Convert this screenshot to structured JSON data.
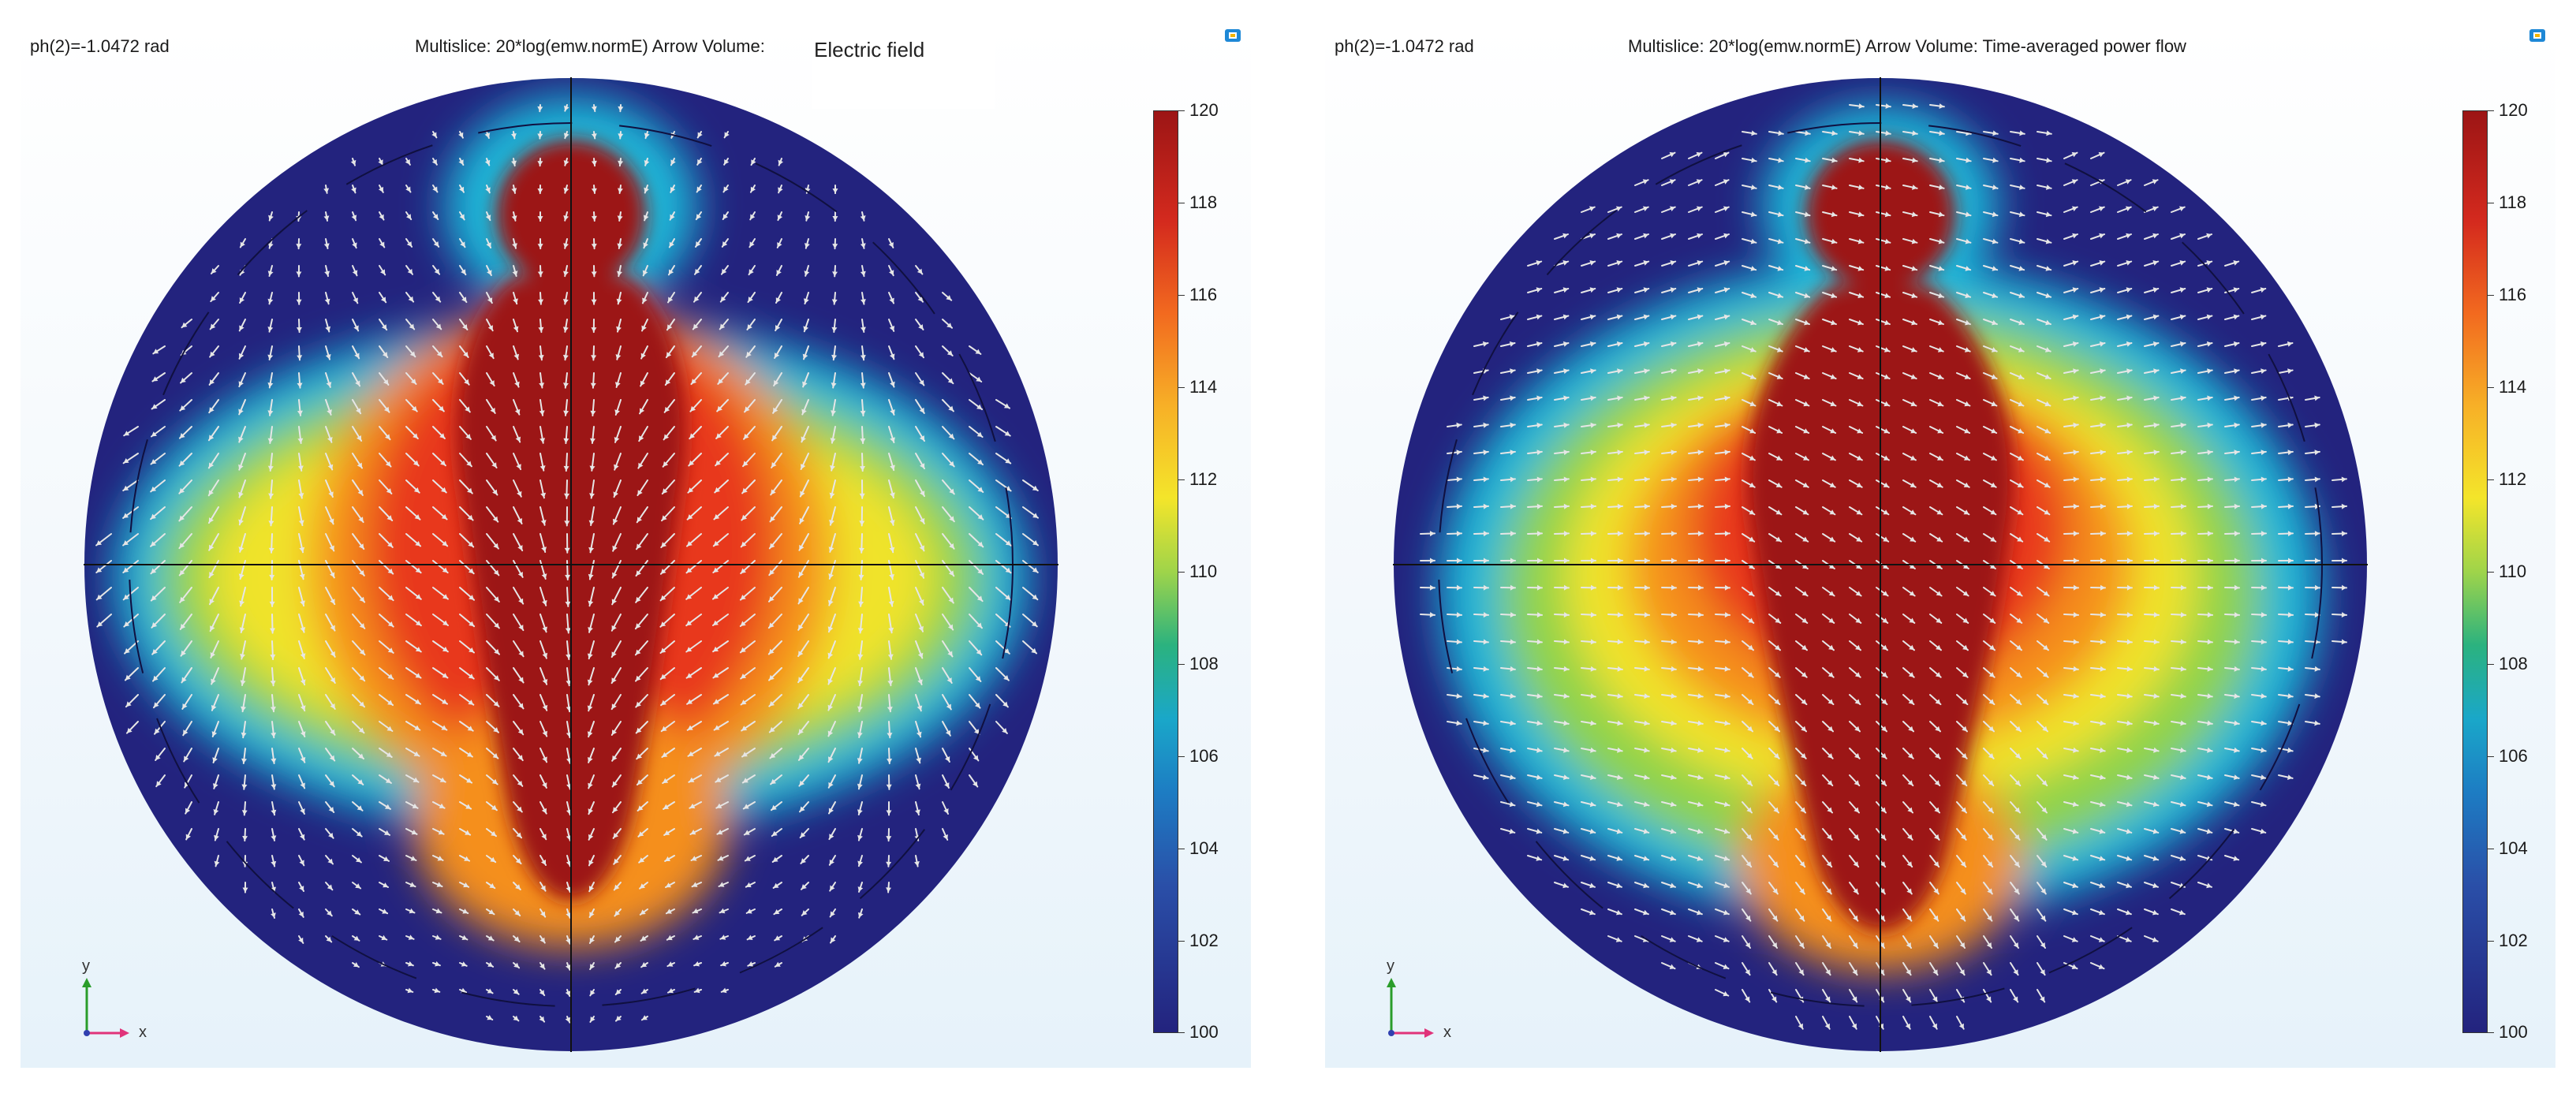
{
  "panels": [
    {
      "phase_label": "ph(2)=-1.0472 rad",
      "title": "Multislice: 20*log(emw.normE)  Arrow Volume:",
      "overlay_text": "Electric field",
      "colorbar_ticks": [
        "120",
        "118",
        "116",
        "114",
        "112",
        "110",
        "108",
        "106",
        "104",
        "102",
        "100"
      ],
      "axis_labels": {
        "y": "y",
        "x": "x"
      },
      "icon": "window-restore-icon"
    },
    {
      "phase_label": "ph(2)=-1.0472 rad",
      "title": "Multislice: 20*log(emw.normE)  Arrow Volume: Time-averaged power flow",
      "colorbar_ticks": [
        "120",
        "118",
        "116",
        "114",
        "112",
        "110",
        "108",
        "106",
        "104",
        "102",
        "100"
      ],
      "axis_labels": {
        "y": "y",
        "x": "x"
      },
      "icon": "window-restore-icon"
    }
  ],
  "colors": {
    "low": "#23237e",
    "high": "#9c1515",
    "arrow": "#e6e6e6"
  }
}
